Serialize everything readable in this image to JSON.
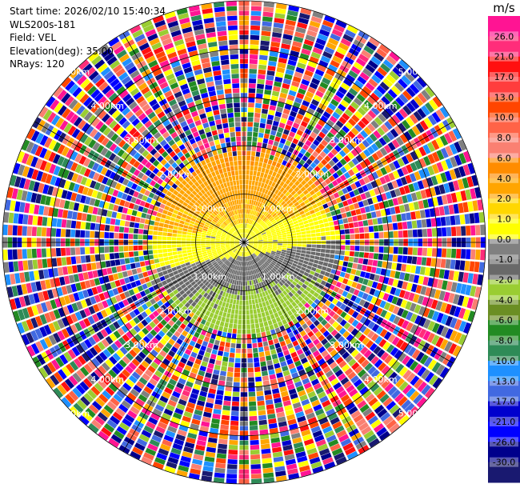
{
  "info": {
    "start_time": "Start time: 2026/02/10 15:40:34",
    "instrument": "WLS200s-181",
    "field": "Field: VEL",
    "elevation": "Elevation(deg): 35.00",
    "nrays": "NRays: 120"
  },
  "colorbar": {
    "unit": "m/s",
    "tick_labels": [
      "26.0",
      "21.0",
      "17.0",
      "13.0",
      "10.0",
      "8.0",
      "6.0",
      "4.0",
      "2.0",
      "1.0",
      "0.0",
      "-1.0",
      "-2.0",
      "-4.0",
      "-6.0",
      "-8.0",
      "-10.0",
      "-13.0",
      "-17.0",
      "-21.0",
      "-26.0",
      "-30.0"
    ],
    "colors": [
      "#ff1493",
      "#ff2d7a",
      "#ff1010",
      "#ff3d3d",
      "#ff4500",
      "#ff6347",
      "#fa8072",
      "#ff8c00",
      "#ffa500",
      "#ffd700",
      "#ffff00",
      "#808080",
      "#696969",
      "#9acd32",
      "#6b8e23",
      "#228b22",
      "#2e8b57",
      "#1e90ff",
      "#4169e1",
      "#0000cd",
      "#0000ff",
      "#00008b",
      "#191970"
    ]
  },
  "chart_data": {
    "type": "heatmap",
    "subtype": "polar PPI scan",
    "field": "VEL",
    "units": "m/s",
    "color_range": [
      -30,
      26
    ],
    "nrays": 120,
    "elevation_deg": 35.0,
    "range_rings_km": [
      1.0,
      2.0,
      3.0,
      4.0,
      5.0
    ],
    "range_ring_labels": [
      "1.00km",
      "2.00km",
      "3.00km",
      "4.00km",
      "5.00km"
    ],
    "max_range_km": 5.0,
    "valid_data_range_km": 2.0,
    "spokes_deg": [
      0,
      30,
      60,
      90,
      120,
      150,
      180,
      210,
      240,
      270,
      300,
      330
    ],
    "description_of_pattern": {
      "north_sector_velocity_ms": [
        2.0,
        6.0
      ],
      "center_band_velocity_ms": [
        -1.0,
        1.0
      ],
      "south_sector_velocity_ms": [
        -8.0,
        -2.0
      ],
      "beyond_2km": "noise (full color range)"
    }
  }
}
